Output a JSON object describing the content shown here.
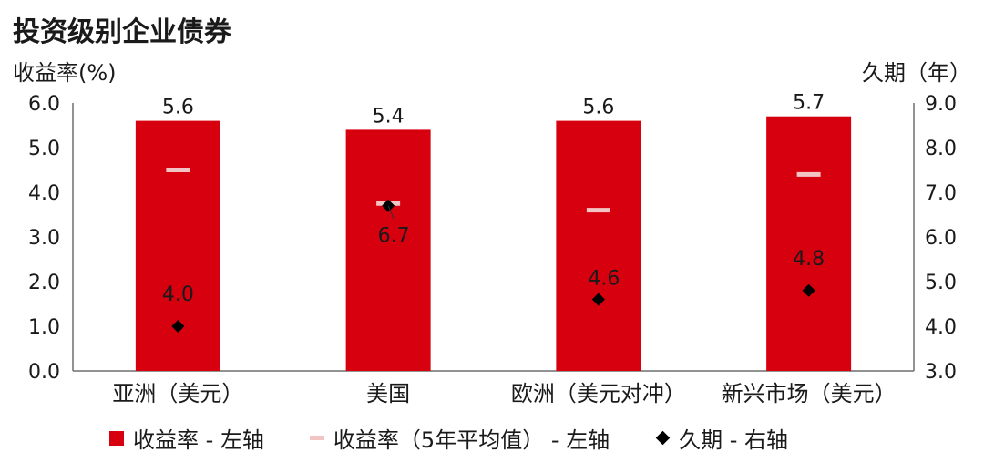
{
  "title": "投资级别企业债券",
  "colors": {
    "bar": "#d7000f",
    "avg": "#f2c4c4",
    "marker": "#000000",
    "axis": "#6f6f6f"
  },
  "chart_data": {
    "type": "bar",
    "title": "投资级别企业债券",
    "ylabel_left": "收益率(%)",
    "ylabel_right": "久期（年）",
    "categories": [
      "亚洲（美元）",
      "美国",
      "欧洲（美元对冲）",
      "新兴市场（美元）"
    ],
    "ylim_left": [
      0,
      6
    ],
    "ylim_right": [
      3,
      9
    ],
    "yticks_left": [
      "0.0",
      "1.0",
      "2.0",
      "3.0",
      "4.0",
      "5.0",
      "6.0"
    ],
    "yticks_right": [
      "3.0",
      "4.0",
      "5.0",
      "6.0",
      "7.0",
      "8.0",
      "9.0"
    ],
    "grid": false,
    "legend_position": "bottom",
    "series": [
      {
        "name": "收益率 - 左轴",
        "type": "bar",
        "axis": "left",
        "values": [
          5.6,
          5.4,
          5.6,
          5.7
        ],
        "labels": [
          "5.6",
          "5.4",
          "5.6",
          "5.7"
        ]
      },
      {
        "name": "收益率（5年平均值） - 左轴",
        "type": "marker-dash",
        "axis": "left",
        "values": [
          4.5,
          3.75,
          3.6,
          4.4
        ]
      },
      {
        "name": "久期 - 右轴",
        "type": "scatter-diamond",
        "axis": "right",
        "values": [
          4.0,
          6.7,
          4.6,
          4.8
        ],
        "labels": [
          "4.0",
          "6.7",
          "4.6",
          "4.8"
        ]
      }
    ]
  }
}
